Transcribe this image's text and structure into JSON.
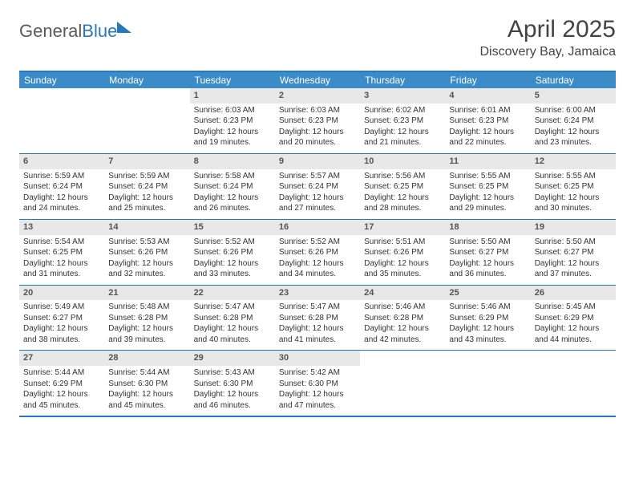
{
  "brand": {
    "part1": "General",
    "part2": "Blue"
  },
  "title": "April 2025",
  "location": "Discovery Bay, Jamaica",
  "colors": {
    "header_bg": "#3b8bc9",
    "border": "#2878bd",
    "daynum_bg": "#e8e8e8",
    "text": "#333333"
  },
  "weekdays": [
    "Sunday",
    "Monday",
    "Tuesday",
    "Wednesday",
    "Thursday",
    "Friday",
    "Saturday"
  ],
  "leading_blanks": 2,
  "days": [
    {
      "n": 1,
      "sunrise": "6:03 AM",
      "sunset": "6:23 PM",
      "daylight": "12 hours and 19 minutes."
    },
    {
      "n": 2,
      "sunrise": "6:03 AM",
      "sunset": "6:23 PM",
      "daylight": "12 hours and 20 minutes."
    },
    {
      "n": 3,
      "sunrise": "6:02 AM",
      "sunset": "6:23 PM",
      "daylight": "12 hours and 21 minutes."
    },
    {
      "n": 4,
      "sunrise": "6:01 AM",
      "sunset": "6:23 PM",
      "daylight": "12 hours and 22 minutes."
    },
    {
      "n": 5,
      "sunrise": "6:00 AM",
      "sunset": "6:24 PM",
      "daylight": "12 hours and 23 minutes."
    },
    {
      "n": 6,
      "sunrise": "5:59 AM",
      "sunset": "6:24 PM",
      "daylight": "12 hours and 24 minutes."
    },
    {
      "n": 7,
      "sunrise": "5:59 AM",
      "sunset": "6:24 PM",
      "daylight": "12 hours and 25 minutes."
    },
    {
      "n": 8,
      "sunrise": "5:58 AM",
      "sunset": "6:24 PM",
      "daylight": "12 hours and 26 minutes."
    },
    {
      "n": 9,
      "sunrise": "5:57 AM",
      "sunset": "6:24 PM",
      "daylight": "12 hours and 27 minutes."
    },
    {
      "n": 10,
      "sunrise": "5:56 AM",
      "sunset": "6:25 PM",
      "daylight": "12 hours and 28 minutes."
    },
    {
      "n": 11,
      "sunrise": "5:55 AM",
      "sunset": "6:25 PM",
      "daylight": "12 hours and 29 minutes."
    },
    {
      "n": 12,
      "sunrise": "5:55 AM",
      "sunset": "6:25 PM",
      "daylight": "12 hours and 30 minutes."
    },
    {
      "n": 13,
      "sunrise": "5:54 AM",
      "sunset": "6:25 PM",
      "daylight": "12 hours and 31 minutes."
    },
    {
      "n": 14,
      "sunrise": "5:53 AM",
      "sunset": "6:26 PM",
      "daylight": "12 hours and 32 minutes."
    },
    {
      "n": 15,
      "sunrise": "5:52 AM",
      "sunset": "6:26 PM",
      "daylight": "12 hours and 33 minutes."
    },
    {
      "n": 16,
      "sunrise": "5:52 AM",
      "sunset": "6:26 PM",
      "daylight": "12 hours and 34 minutes."
    },
    {
      "n": 17,
      "sunrise": "5:51 AM",
      "sunset": "6:26 PM",
      "daylight": "12 hours and 35 minutes."
    },
    {
      "n": 18,
      "sunrise": "5:50 AM",
      "sunset": "6:27 PM",
      "daylight": "12 hours and 36 minutes."
    },
    {
      "n": 19,
      "sunrise": "5:50 AM",
      "sunset": "6:27 PM",
      "daylight": "12 hours and 37 minutes."
    },
    {
      "n": 20,
      "sunrise": "5:49 AM",
      "sunset": "6:27 PM",
      "daylight": "12 hours and 38 minutes."
    },
    {
      "n": 21,
      "sunrise": "5:48 AM",
      "sunset": "6:28 PM",
      "daylight": "12 hours and 39 minutes."
    },
    {
      "n": 22,
      "sunrise": "5:47 AM",
      "sunset": "6:28 PM",
      "daylight": "12 hours and 40 minutes."
    },
    {
      "n": 23,
      "sunrise": "5:47 AM",
      "sunset": "6:28 PM",
      "daylight": "12 hours and 41 minutes."
    },
    {
      "n": 24,
      "sunrise": "5:46 AM",
      "sunset": "6:28 PM",
      "daylight": "12 hours and 42 minutes."
    },
    {
      "n": 25,
      "sunrise": "5:46 AM",
      "sunset": "6:29 PM",
      "daylight": "12 hours and 43 minutes."
    },
    {
      "n": 26,
      "sunrise": "5:45 AM",
      "sunset": "6:29 PM",
      "daylight": "12 hours and 44 minutes."
    },
    {
      "n": 27,
      "sunrise": "5:44 AM",
      "sunset": "6:29 PM",
      "daylight": "12 hours and 45 minutes."
    },
    {
      "n": 28,
      "sunrise": "5:44 AM",
      "sunset": "6:30 PM",
      "daylight": "12 hours and 45 minutes."
    },
    {
      "n": 29,
      "sunrise": "5:43 AM",
      "sunset": "6:30 PM",
      "daylight": "12 hours and 46 minutes."
    },
    {
      "n": 30,
      "sunrise": "5:42 AM",
      "sunset": "6:30 PM",
      "daylight": "12 hours and 47 minutes."
    }
  ],
  "labels": {
    "sunrise": "Sunrise:",
    "sunset": "Sunset:",
    "daylight": "Daylight:"
  }
}
